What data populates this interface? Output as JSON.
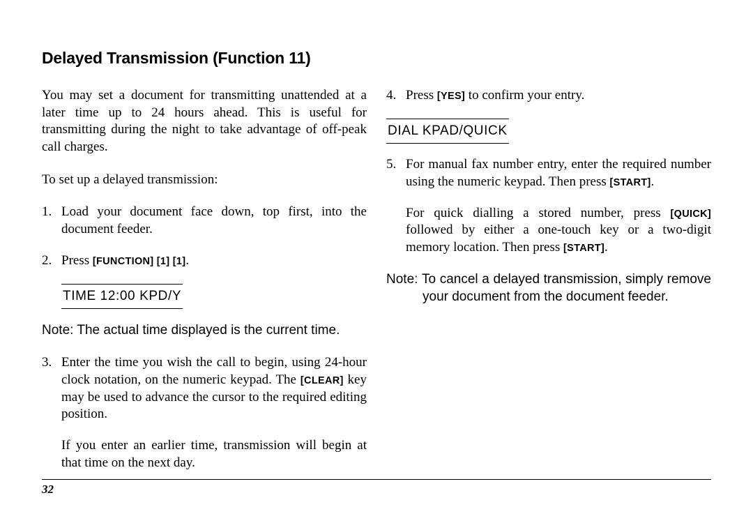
{
  "title": "Delayed Transmission (Function 11)",
  "left": {
    "intro": "You may set a document for transmitting unattended at a later time up to 24 hours ahead. This is useful for transmitting during the night to take advantage of off-peak call charges.",
    "lead": "To set up a delayed transmission:",
    "step1": "Load your document face down, top first, into the document feeder.",
    "step2_pre": "Press ",
    "step2_keys": "[FUNCTION] [1] [1]",
    "step2_post": ".",
    "lcd": "TIME 12:00 KPD/Y",
    "note1": "Note: The actual time displayed is the current time.",
    "step3_a": "Enter the time you wish the call to begin, using 24-hour clock notation, on the numeric keypad. The ",
    "step3_key": "[CLEAR]",
    "step3_b": " key may be used to advance the cursor to the required editing position.",
    "step3_sub": "If you enter an earlier time, transmission will begin at that time on the next day."
  },
  "right": {
    "step4_a": "Press ",
    "step4_key": "[YES]",
    "step4_b": " to confirm your entry.",
    "lcd": "DIAL KPAD/QUICK",
    "step5_a": "For manual fax number entry, enter the required number using the numeric keypad. Then press ",
    "step5_key1": "[START]",
    "step5_b": ".",
    "step5_sub_a": "For quick dialling a stored number, press ",
    "step5_key2": "[QUICK]",
    "step5_sub_b": " followed by either a one-touch key or a two-digit memory location. Then press ",
    "step5_key3": "[START]",
    "step5_sub_c": ".",
    "note2": "Note: To cancel a delayed transmission, simply remove your document from the document feeder."
  },
  "page_number": "32",
  "colors": {
    "text": "#000000",
    "background": "#ffffff",
    "rule": "#000000"
  },
  "fonts": {
    "body_family": "Times New Roman",
    "ui_family": "Helvetica",
    "title_size_pt": 17,
    "body_size_pt": 14,
    "key_size_pt": 11
  }
}
